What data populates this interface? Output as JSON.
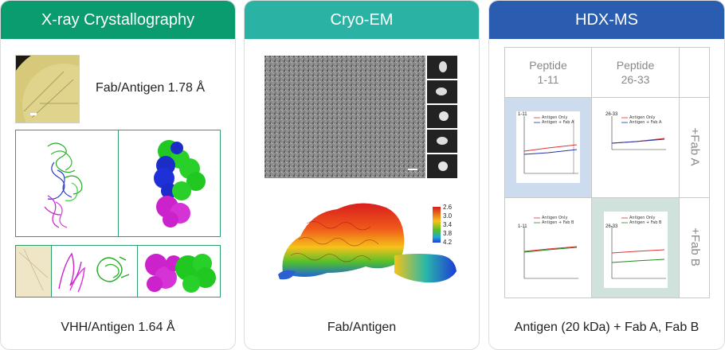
{
  "panels": [
    {
      "title": "X-ray Crystallography",
      "color": "#0a9b6f",
      "crystal_label": "Fab/Antigen 1.78 Å",
      "footer": "VHH/Antigen 1.64 Å"
    },
    {
      "title": "Cryo-EM",
      "color": "#2ab2a4",
      "colorbar_ticks": [
        "2.6",
        "3.0",
        "3.4",
        "3.8",
        "4.2"
      ],
      "footer": "Fab/Antigen"
    },
    {
      "title": "HDX-MS",
      "color": "#2a5cb0",
      "col_headers": [
        "Peptide\n1-11",
        "Peptide\n26-33"
      ],
      "row_labels": [
        "+Fab A",
        "+Fab B"
      ],
      "plots": [
        {
          "peptide": "1-11",
          "legend": [
            "Antigen Only",
            "Antigen + Fab A"
          ],
          "bg": "#ccdcee"
        },
        {
          "peptide": "26-33",
          "legend": [
            "Antigen Only",
            "Antigen + Fab A"
          ],
          "bg": "#ffffff"
        },
        {
          "peptide": "1-11",
          "legend": [
            "Antigen Only",
            "Antigen + Fab B"
          ],
          "bg": "#ffffff"
        },
        {
          "peptide": "26-33",
          "legend": [
            "Antigen Only",
            "Antigen + Fab B"
          ],
          "bg": "#cfe3dc"
        }
      ],
      "footer": "Antigen (20 kDa) + Fab A, Fab B"
    }
  ]
}
